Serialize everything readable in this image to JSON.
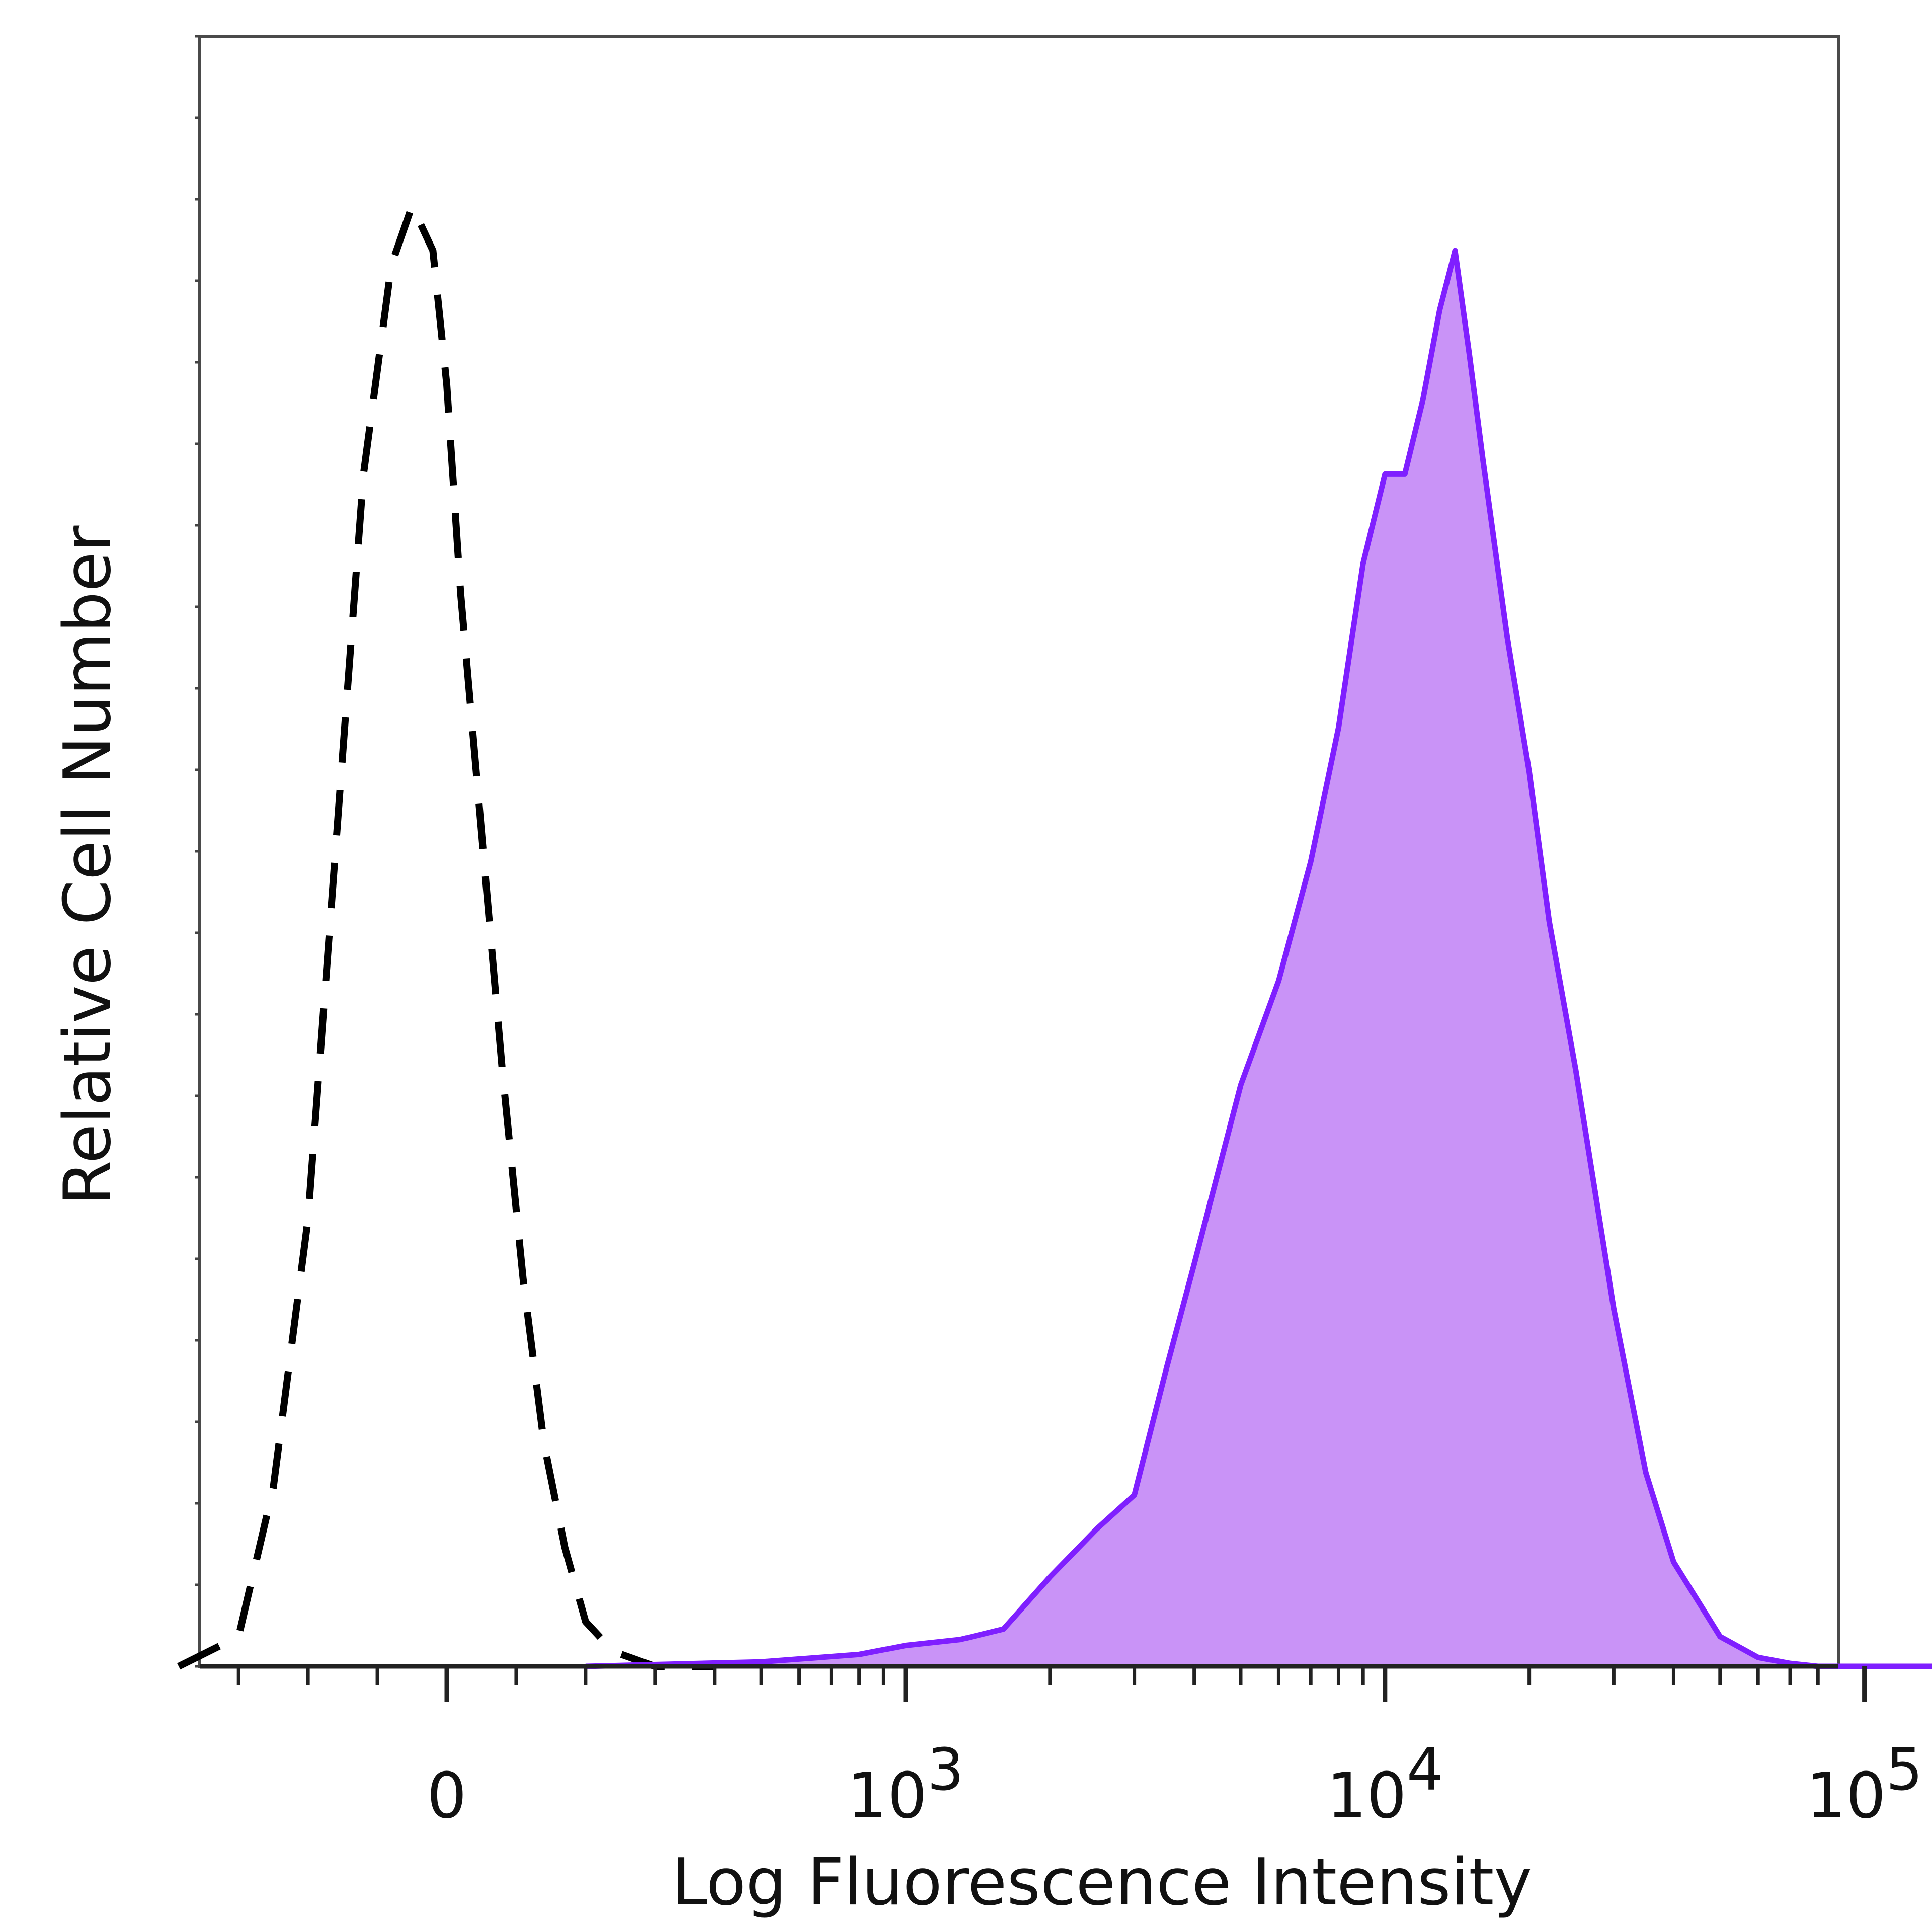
{
  "chart_data": {
    "type": "area",
    "title": "",
    "xlabel": "Log Fluorescence Intensity",
    "ylabel": "Relative Cell Number",
    "x_scale": "biexponential",
    "xlim": [
      -500,
      200000
    ],
    "ylim": [
      0,
      1.0
    ],
    "grid": false,
    "x_tick_labels": [
      {
        "value": 0,
        "base": "0",
        "exp": ""
      },
      {
        "value": 1000,
        "base": "10",
        "exp": "3"
      },
      {
        "value": 10000,
        "base": "10",
        "exp": "4"
      },
      {
        "value": 100000,
        "base": "10",
        "exp": "5"
      }
    ],
    "series": [
      {
        "style": "dashed",
        "color": "#000000",
        "fill": "none",
        "x": [
          -400,
          -300,
          -250,
          -200,
          -160,
          -120,
          -80,
          -50,
          -20,
          0,
          20,
          50,
          80,
          110,
          140,
          170,
          200,
          240,
          300,
          400
        ],
        "y": [
          0.0,
          0.02,
          0.12,
          0.3,
          0.55,
          0.8,
          0.94,
          0.98,
          0.95,
          0.86,
          0.72,
          0.56,
          0.4,
          0.26,
          0.15,
          0.08,
          0.03,
          0.01,
          0.0,
          0.0
        ]
      },
      {
        "style": "solid",
        "color": "#7f1fff",
        "fill": "#c993f7",
        "x": [
          200,
          500,
          800,
          1000,
          1300,
          1600,
          2000,
          2500,
          3000,
          3500,
          4000,
          5000,
          6000,
          7000,
          8000,
          9000,
          10000,
          11000,
          12000,
          13000,
          14000,
          15000,
          16000,
          18000,
          20000,
          22000,
          25000,
          30000,
          35000,
          40000,
          50000,
          60000,
          70000,
          80000,
          100000,
          150000
        ],
        "y": [
          0.0,
          0.003,
          0.008,
          0.014,
          0.018,
          0.025,
          0.06,
          0.092,
          0.115,
          0.2,
          0.27,
          0.39,
          0.46,
          0.54,
          0.63,
          0.74,
          0.8,
          0.8,
          0.85,
          0.91,
          0.95,
          0.88,
          0.81,
          0.69,
          0.6,
          0.5,
          0.4,
          0.24,
          0.13,
          0.07,
          0.02,
          0.006,
          0.002,
          0.0,
          0.0,
          0.0
        ]
      }
    ]
  }
}
